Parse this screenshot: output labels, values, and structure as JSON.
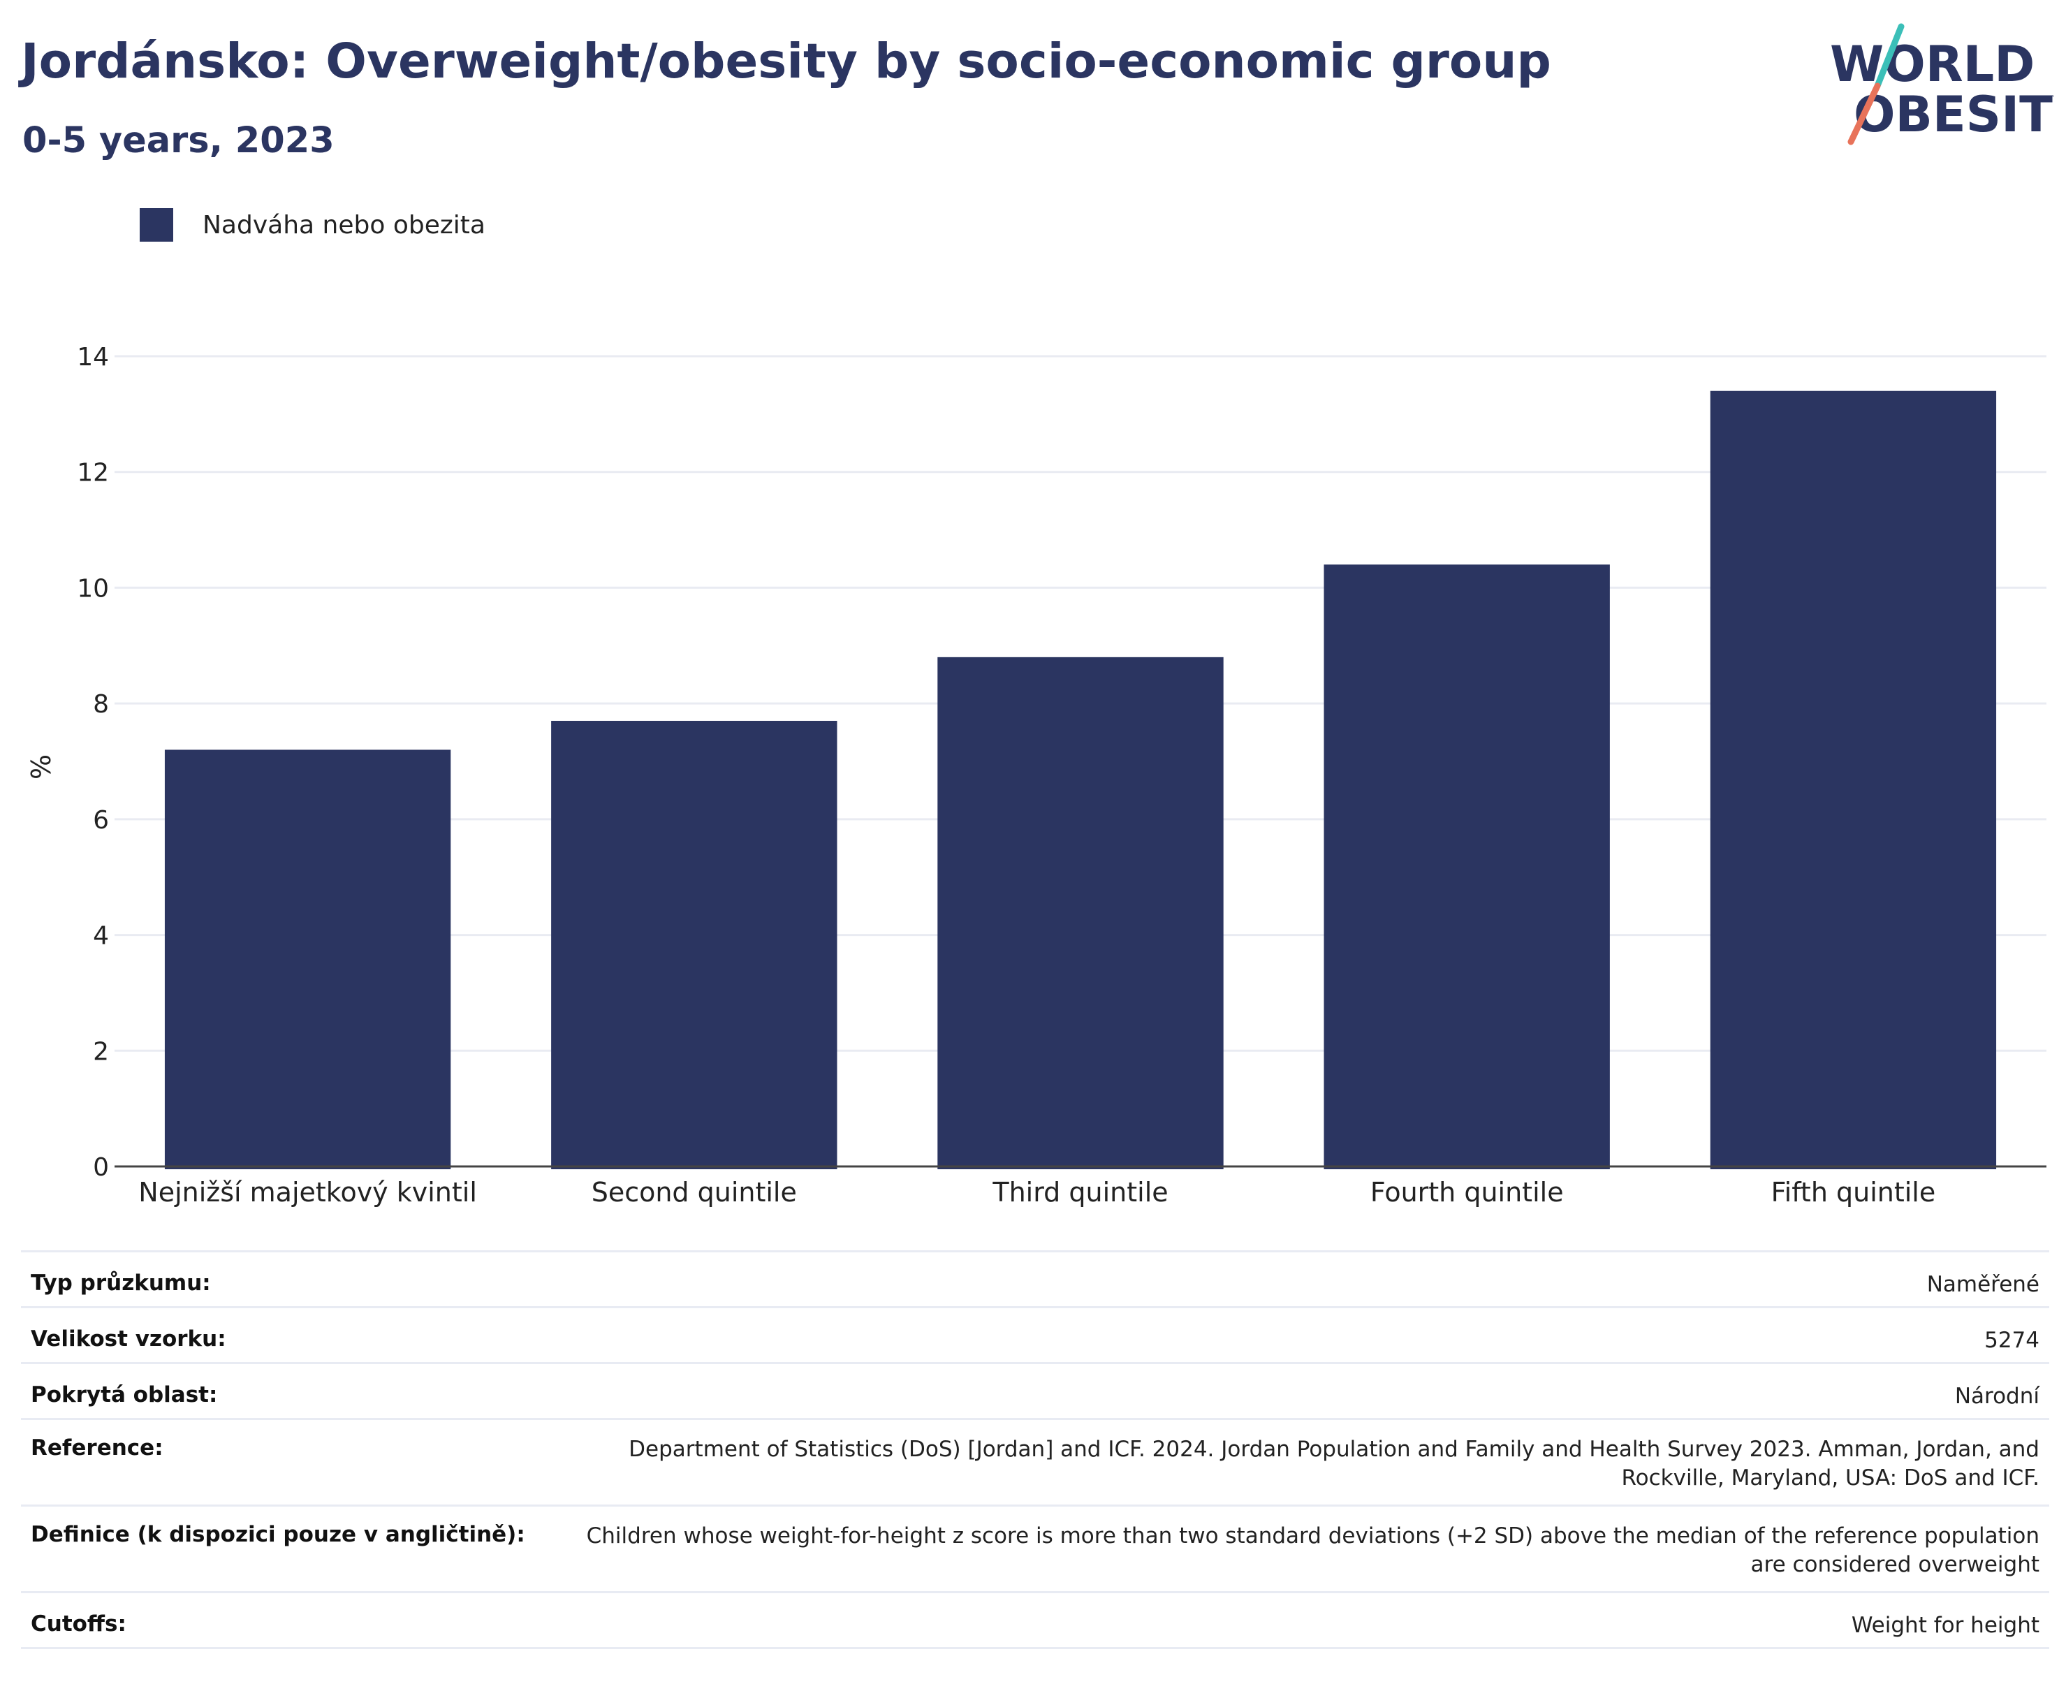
{
  "title": "Jordánsko: Overweight/obesity by socio-economic group",
  "subtitle": "0-5 years, 2023",
  "logo": {
    "line1": "WORLD",
    "line2": "OBESITY",
    "colors": {
      "text": "#2b3561",
      "slash_top": "#3bbfb8",
      "slash_bottom": "#e8735a"
    }
  },
  "chart_data": {
    "type": "bar",
    "categories": [
      "Nejnižší majetkový kvintil",
      "Second quintile",
      "Third quintile",
      "Fourth quintile",
      "Fifth quintile"
    ],
    "series": [
      {
        "name": "Nadváha nebo obezita",
        "values": [
          7.2,
          7.7,
          8.8,
          10.4,
          13.4
        ],
        "color": "#2b3561"
      }
    ],
    "ylabel": "%",
    "ylim": [
      0,
      14
    ],
    "yticks": [
      0,
      2,
      4,
      6,
      8,
      10,
      12,
      14
    ],
    "grid": true,
    "legend_position": "top-left"
  },
  "info": [
    {
      "label": "Typ průzkumu:",
      "value": "Naměřené"
    },
    {
      "label": "Velikost vzorku:",
      "value": "5274"
    },
    {
      "label": "Pokrytá oblast:",
      "value": "Národní"
    },
    {
      "label": "Reference:",
      "value": "Department of Statistics (DoS) [Jordan] and ICF. 2024. Jordan Population and Family and Health Survey 2023. Amman, Jordan, and Rockville, Maryland, USA: DoS and ICF."
    },
    {
      "label": "Definice (k dispozici pouze v angličtině):",
      "value": "Children whose weight-for-height z score is more than two standard deviations (+2 SD) above the median of the reference population are considered overweight"
    },
    {
      "label": "Cutoffs:",
      "value": "Weight for height"
    }
  ]
}
